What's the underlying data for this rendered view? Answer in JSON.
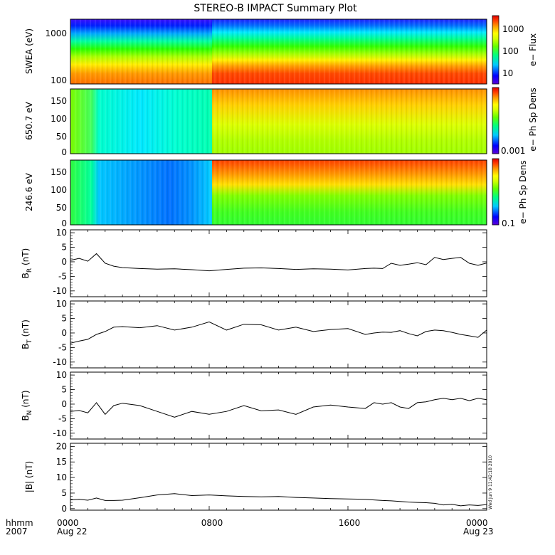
{
  "title": "STEREO-B IMPACT Summary Plot",
  "footer": {
    "hhmm": "hhmm",
    "year": "2007",
    "timestamp": "Wed Jun 9 11:42:18 2010",
    "x_ticks": [
      "0000",
      "0800",
      "1600",
      "0000"
    ],
    "x_dates": [
      "Aug 22",
      "",
      "",
      "Aug 23"
    ]
  },
  "colors": {
    "trace": "#000000",
    "colormap": [
      "#5a00d6",
      "#0000ff",
      "#00c8ff",
      "#00ff80",
      "#64ff00",
      "#d2ff00",
      "#ffff00",
      "#ffa000",
      "#ff3c00",
      "#dc0000"
    ]
  },
  "chart_data": [
    {
      "type": "heatmap",
      "ylabel": "SWEA (eV)",
      "yscale": "log",
      "y_ticks": [
        "1000",
        "100"
      ],
      "colorbar_label": "e− Flux",
      "colorbar_ticks": [
        "1000",
        "100",
        "10"
      ],
      "x_hours": [
        0,
        8,
        16,
        24
      ],
      "description_values": [
        {
          "from_hour": 0,
          "to_hour": 8,
          "low_energy_flux": "high",
          "high_energy_flux": "medium"
        },
        {
          "from_hour": 8,
          "to_hour": 24,
          "low_energy_flux": "very high",
          "high_energy_flux": "medium"
        }
      ]
    },
    {
      "type": "heatmap",
      "ylabel": "650.7 eV",
      "ylim": [
        0,
        180
      ],
      "y_ticks": [
        "150",
        "100",
        "50",
        "0"
      ],
      "colorbar_label": "e− Ph Sp Dens",
      "colorbar_ticks": [
        "0.001"
      ]
    },
    {
      "type": "heatmap",
      "ylabel": "246.6 eV",
      "ylim": [
        0,
        180
      ],
      "y_ticks": [
        "150",
        "100",
        "50",
        "0"
      ],
      "colorbar_label": "e− Ph Sp Dens",
      "colorbar_ticks": [
        "0.1"
      ]
    },
    {
      "type": "line",
      "ylabel": "B",
      "ysub": "R",
      "yunit": " (nT)",
      "ylim": [
        -12,
        11
      ],
      "y_ticks": [
        10,
        5,
        0,
        -5,
        -10
      ],
      "x": [
        0,
        0.5,
        1,
        1.5,
        2,
        2.5,
        3,
        4,
        5,
        6,
        7,
        8,
        9,
        10,
        11,
        12,
        13,
        14,
        15,
        16,
        17,
        17.5,
        18,
        18.5,
        19,
        19.5,
        20,
        20.5,
        21,
        21.5,
        22,
        22.5,
        23,
        23.5,
        24
      ],
      "y": [
        0.5,
        1.2,
        0.2,
        2.8,
        -0.5,
        -1.5,
        -2.0,
        -2.3,
        -2.5,
        -2.4,
        -2.7,
        -3.1,
        -2.6,
        -2.2,
        -2.1,
        -2.3,
        -2.6,
        -2.4,
        -2.5,
        -2.8,
        -2.3,
        -2.2,
        -2.3,
        -0.5,
        -1.2,
        -0.8,
        -0.3,
        -1.0,
        1.5,
        0.8,
        1.2,
        1.5,
        -0.5,
        -1.2,
        -0.4
      ]
    },
    {
      "type": "line",
      "ylabel": "B",
      "ysub": "T",
      "yunit": " (nT)",
      "ylim": [
        -12,
        11
      ],
      "y_ticks": [
        10,
        5,
        0,
        -5,
        -10
      ],
      "x": [
        0,
        0.5,
        1,
        1.5,
        2,
        2.5,
        3,
        4,
        5,
        6,
        7,
        8,
        9,
        10,
        11,
        12,
        13,
        14,
        15,
        16,
        17,
        17.5,
        18,
        18.5,
        19,
        19.5,
        20,
        20.5,
        21,
        21.5,
        22,
        22.5,
        23,
        23.5,
        24
      ],
      "y": [
        -3.5,
        -2.8,
        -2.2,
        -0.5,
        0.5,
        2.0,
        2.2,
        1.8,
        2.5,
        1.0,
        2.0,
        3.8,
        1.0,
        3.0,
        2.8,
        1.0,
        2.0,
        0.5,
        1.2,
        1.5,
        -0.5,
        0.0,
        0.3,
        0.2,
        0.8,
        -0.2,
        -1.0,
        0.5,
        1.0,
        0.8,
        0.2,
        -0.5,
        -1.0,
        -1.5,
        1.0
      ]
    },
    {
      "type": "line",
      "ylabel": "B",
      "ysub": "N",
      "yunit": " (nT)",
      "ylim": [
        -12,
        11
      ],
      "y_ticks": [
        10,
        5,
        0,
        -5,
        -10
      ],
      "x": [
        0,
        0.5,
        1,
        1.5,
        2,
        2.5,
        3,
        4,
        5,
        6,
        7,
        8,
        9,
        10,
        11,
        12,
        13,
        14,
        15,
        16,
        17,
        17.5,
        18,
        18.5,
        19,
        19.5,
        20,
        20.5,
        21,
        21.5,
        22,
        22.5,
        23,
        23.5,
        24
      ],
      "y": [
        -2.5,
        -2.2,
        -3.0,
        0.5,
        -3.5,
        -0.5,
        0.3,
        -0.5,
        -2.5,
        -4.5,
        -2.5,
        -3.5,
        -2.5,
        -0.5,
        -2.3,
        -2.0,
        -3.5,
        -1.0,
        -0.3,
        -1.0,
        -1.5,
        0.5,
        0.0,
        0.5,
        -1.0,
        -1.5,
        0.5,
        0.8,
        1.5,
        2.0,
        1.5,
        2.0,
        1.2,
        2.0,
        1.5
      ]
    },
    {
      "type": "line",
      "ylabel": "|B| (nT)",
      "ylim": [
        -0.5,
        21
      ],
      "y_ticks": [
        20,
        15,
        10,
        5,
        0
      ],
      "x": [
        0,
        0.5,
        1,
        1.5,
        2,
        2.5,
        3,
        4,
        5,
        6,
        7,
        8,
        9,
        10,
        11,
        12,
        13,
        14,
        15,
        16,
        17,
        17.5,
        18,
        18.5,
        19,
        19.5,
        20,
        20.5,
        21,
        21.5,
        22,
        22.5,
        23,
        23.5,
        24
      ],
      "y": [
        2.8,
        3.0,
        2.7,
        3.4,
        2.6,
        2.6,
        2.7,
        3.5,
        4.4,
        4.8,
        4.2,
        4.4,
        4.1,
        3.9,
        3.8,
        3.9,
        3.6,
        3.4,
        3.2,
        3.1,
        3.0,
        2.8,
        2.6,
        2.5,
        2.3,
        2.1,
        2.0,
        1.9,
        1.7,
        1.2,
        1.4,
        0.9,
        1.2,
        1.0,
        1.3
      ]
    }
  ]
}
